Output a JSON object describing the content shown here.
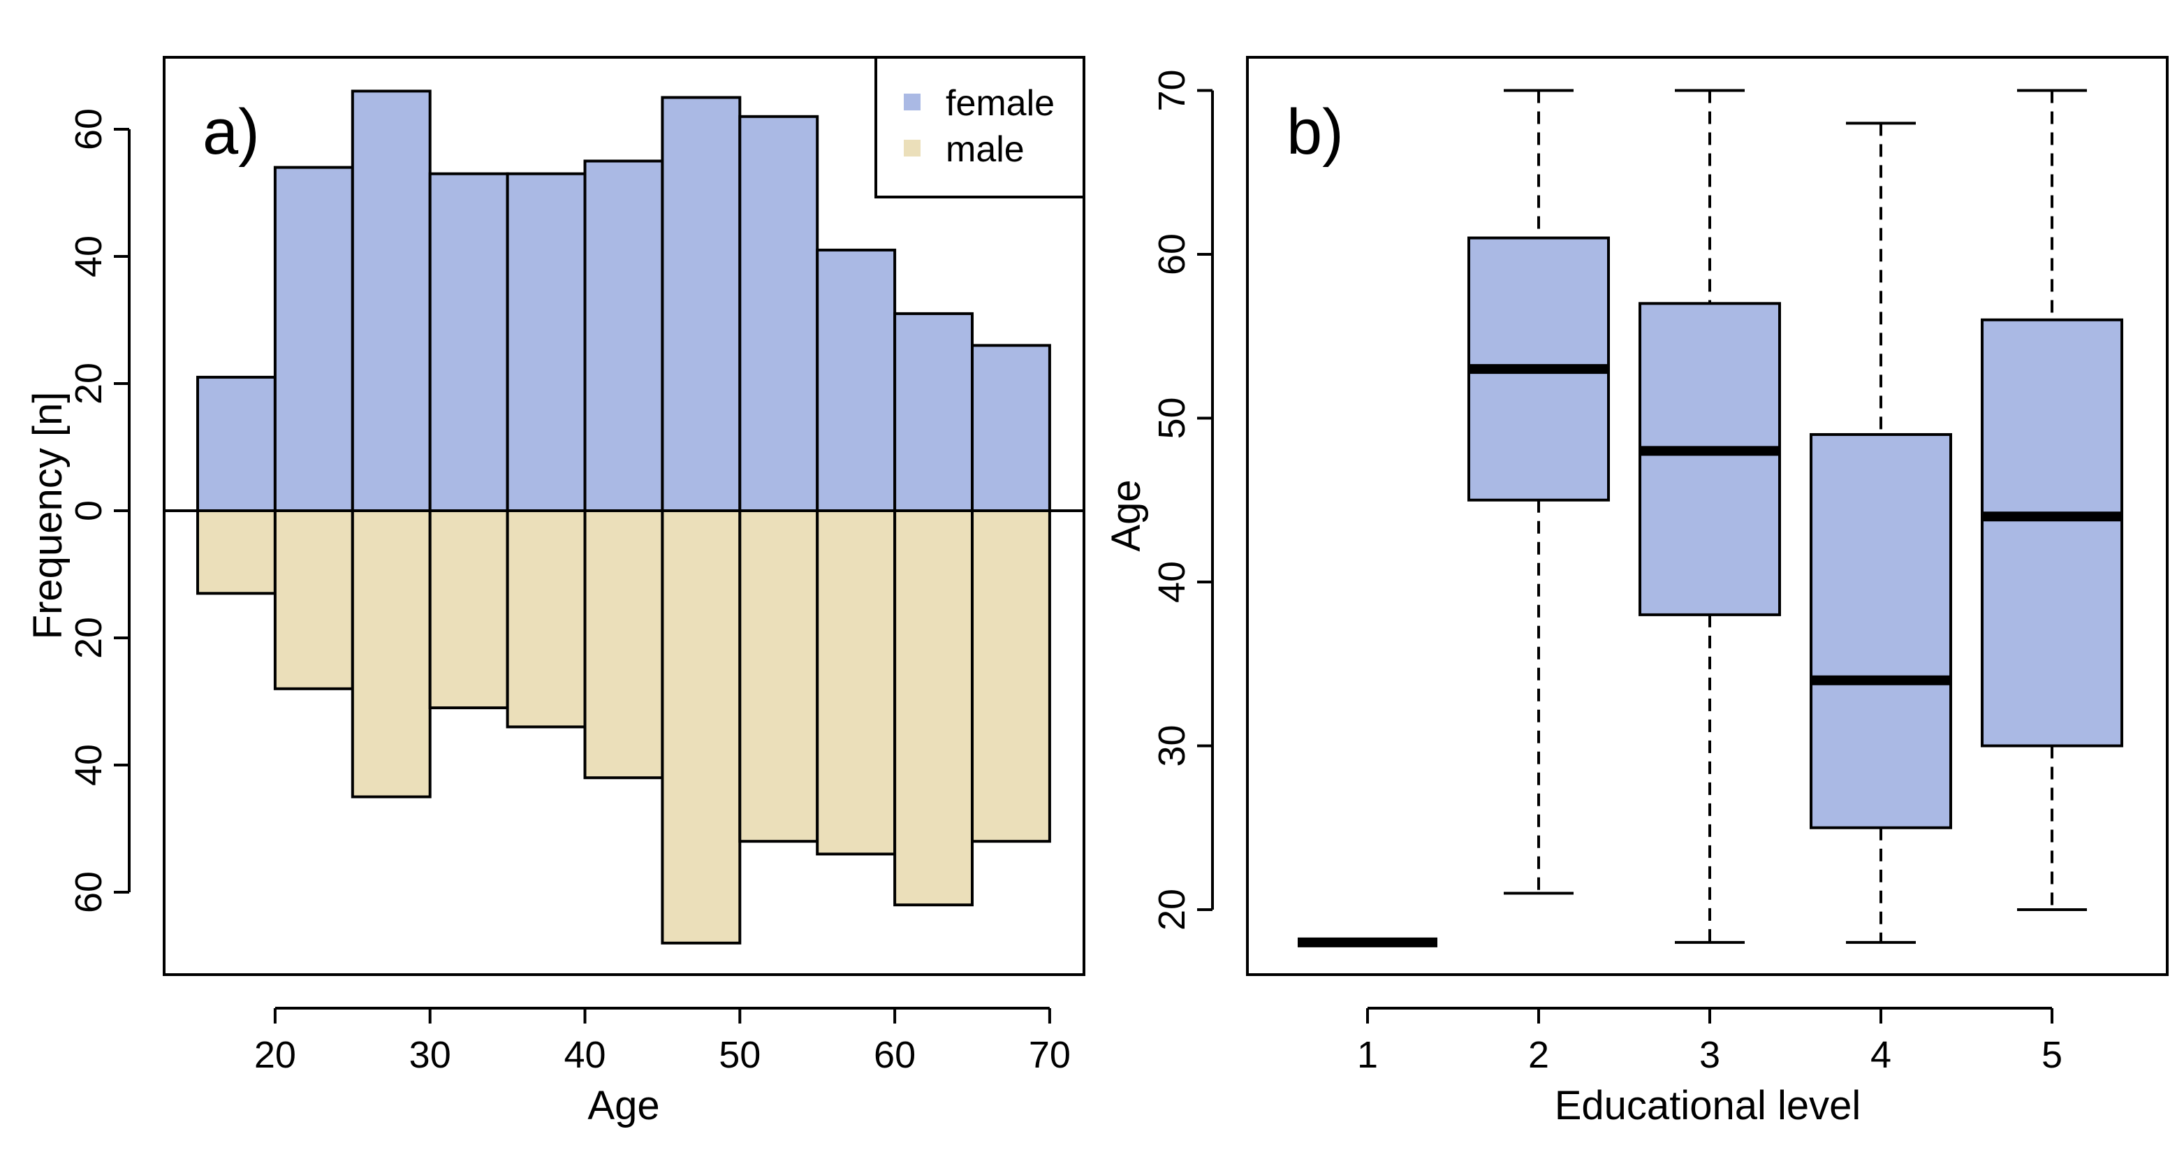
{
  "colors": {
    "female": "#aab9e4",
    "male": "#ebdfba",
    "box_fill": "#aab9e4",
    "stroke": "#000000"
  },
  "chart_data": [
    {
      "type": "bar",
      "subtype": "back-to-back histogram",
      "panel_label": "a)",
      "xlabel": "Age",
      "ylabel": "Frequency [n]",
      "xlim": [
        15,
        70
      ],
      "ylim": [
        -70,
        70
      ],
      "x_ticks": [
        20,
        30,
        40,
        50,
        60,
        70
      ],
      "y_ticks": [
        60,
        40,
        20,
        0,
        -20,
        -40,
        -60
      ],
      "y_tick_labels": [
        "60",
        "40",
        "20",
        "0",
        "20",
        "40",
        "60"
      ],
      "bins": [
        [
          15,
          20
        ],
        [
          20,
          25
        ],
        [
          25,
          30
        ],
        [
          30,
          35
        ],
        [
          35,
          40
        ],
        [
          40,
          45
        ],
        [
          45,
          50
        ],
        [
          50,
          55
        ],
        [
          55,
          60
        ],
        [
          60,
          65
        ],
        [
          65,
          70
        ]
      ],
      "series": [
        {
          "name": "female",
          "direction": "up",
          "values": [
            21,
            54,
            66,
            53,
            53,
            55,
            65,
            62,
            41,
            31,
            26
          ]
        },
        {
          "name": "male",
          "direction": "down",
          "values": [
            13,
            28,
            45,
            31,
            34,
            42,
            68,
            52,
            54,
            62,
            52
          ]
        }
      ],
      "legend": {
        "position": "top-right",
        "entries": [
          "female",
          "male"
        ]
      }
    },
    {
      "type": "boxplot",
      "panel_label": "b)",
      "xlabel": "Educational level",
      "ylabel": "Age",
      "ylim": [
        16,
        72
      ],
      "y_ticks": [
        20,
        30,
        40,
        50,
        60,
        70
      ],
      "categories": [
        "1",
        "2",
        "3",
        "4",
        "5"
      ],
      "boxes": [
        {
          "category": "1",
          "min": 18,
          "q1": 18,
          "median": 18,
          "q3": 18,
          "max": 18
        },
        {
          "category": "2",
          "min": 21,
          "q1": 45,
          "median": 53,
          "q3": 61,
          "max": 70
        },
        {
          "category": "3",
          "min": 18,
          "q1": 38,
          "median": 48,
          "q3": 57,
          "max": 70
        },
        {
          "category": "4",
          "min": 18,
          "q1": 25,
          "median": 34,
          "q3": 49,
          "max": 68
        },
        {
          "category": "5",
          "min": 20,
          "q1": 30,
          "median": 44,
          "q3": 56,
          "max": 70
        }
      ]
    }
  ]
}
